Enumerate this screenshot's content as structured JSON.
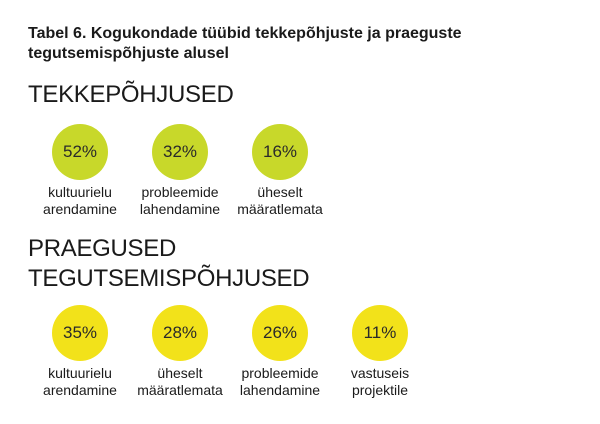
{
  "title": "Tabel 6. Kogukondade tüübid tekkepõhjuste ja praeguste tegutsemispõhjuste alusel",
  "chart_data": [
    {
      "type": "bubble-percentages",
      "section_title": "TEKKEPÕHJUSED",
      "color": "#c8d82a",
      "items": [
        {
          "label": "kultuurielu\narendamine",
          "value": 52,
          "display": "52%"
        },
        {
          "label": "probleemide\nlahendamine",
          "value": 32,
          "display": "32%"
        },
        {
          "label": "üheselt\nmääratlemata",
          "value": 16,
          "display": "16%"
        }
      ]
    },
    {
      "type": "bubble-percentages",
      "section_title": "PRAEGUSED\nTEGUTSEMISPÕHJUSED",
      "color": "#f2e21a",
      "items": [
        {
          "label": "kultuurielu\narendamine",
          "value": 35,
          "display": "35%"
        },
        {
          "label": "üheselt\nmääratlemata",
          "value": 28,
          "display": "28%"
        },
        {
          "label": "probleemide\nlahendamine",
          "value": 26,
          "display": "26%"
        },
        {
          "label": "vastuseis\nprojektile",
          "value": 11,
          "display": "11%"
        }
      ]
    }
  ]
}
